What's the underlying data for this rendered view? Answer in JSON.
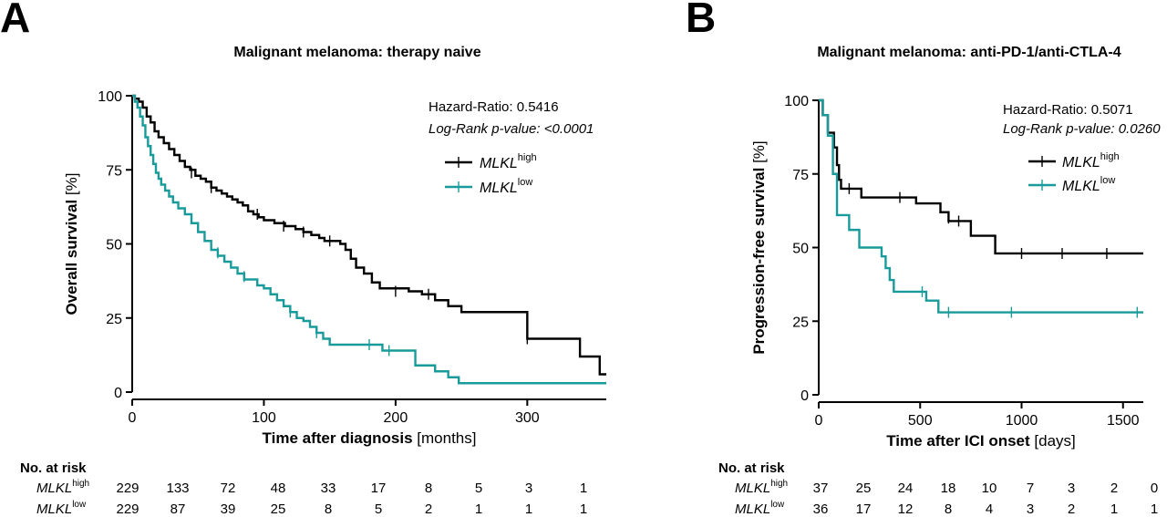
{
  "chart_data": [
    {
      "panel": "A",
      "type": "line",
      "title": "Malignant melanoma: therapy naive",
      "xlabel": "Time after diagnosis",
      "xunit": "[months]",
      "ylabel": "Overall survival",
      "yunit": "[%]",
      "xlim": [
        0,
        360
      ],
      "ylim": [
        0,
        100
      ],
      "xticks": [
        0,
        100,
        200,
        300
      ],
      "yticks": [
        0,
        25,
        50,
        75,
        100
      ],
      "grid": false,
      "stats": {
        "hazard_ratio": "Hazard-Ratio: 0.5416",
        "logrank": "Log-Rank p-value: <0.0001"
      },
      "legend_position": "top-right",
      "series": [
        {
          "name": "MLKL",
          "sup": "high",
          "color": "#000000",
          "steps": [
            [
              0,
              100
            ],
            [
              2,
              99
            ],
            [
              5,
              98
            ],
            [
              8,
              96
            ],
            [
              11,
              93
            ],
            [
              14,
              91
            ],
            [
              17,
              88
            ],
            [
              20,
              86
            ],
            [
              24,
              84
            ],
            [
              28,
              82
            ],
            [
              32,
              80
            ],
            [
              36,
              78
            ],
            [
              40,
              76
            ],
            [
              44,
              75
            ],
            [
              48,
              73
            ],
            [
              52,
              72
            ],
            [
              56,
              71
            ],
            [
              60,
              69
            ],
            [
              64,
              68
            ],
            [
              68,
              67
            ],
            [
              72,
              66
            ],
            [
              76,
              65
            ],
            [
              80,
              64
            ],
            [
              84,
              63
            ],
            [
              88,
              61
            ],
            [
              92,
              60
            ],
            [
              96,
              59
            ],
            [
              100,
              58
            ],
            [
              108,
              57
            ],
            [
              116,
              56
            ],
            [
              124,
              55
            ],
            [
              130,
              54
            ],
            [
              136,
              53
            ],
            [
              142,
              52
            ],
            [
              146,
              51
            ],
            [
              152,
              51
            ],
            [
              158,
              50
            ],
            [
              162,
              48
            ],
            [
              166,
              45
            ],
            [
              170,
              42
            ],
            [
              176,
              40
            ],
            [
              182,
              37
            ],
            [
              188,
              35
            ],
            [
              210,
              34
            ],
            [
              220,
              33
            ],
            [
              230,
              31
            ],
            [
              240,
              29
            ],
            [
              250,
              27
            ],
            [
              300,
              18
            ],
            [
              340,
              12
            ],
            [
              355,
              6
            ]
          ],
          "end": 360,
          "censors": [
            [
              45,
              74
            ],
            [
              60,
              69
            ],
            [
              95,
              60
            ],
            [
              115,
              56
            ],
            [
              130,
              54
            ],
            [
              150,
              51
            ],
            [
              200,
              34
            ],
            [
              225,
              33
            ],
            [
              300,
              18
            ]
          ]
        },
        {
          "name": "MLKL",
          "sup": "low",
          "color": "#1a9b9b",
          "steps": [
            [
              0,
              100
            ],
            [
              2,
              98
            ],
            [
              4,
              96
            ],
            [
              6,
              93
            ],
            [
              8,
              90
            ],
            [
              10,
              86
            ],
            [
              12,
              83
            ],
            [
              14,
              80
            ],
            [
              16,
              77
            ],
            [
              18,
              74
            ],
            [
              20,
              72
            ],
            [
              22,
              70
            ],
            [
              25,
              68
            ],
            [
              28,
              66
            ],
            [
              31,
              64
            ],
            [
              35,
              62
            ],
            [
              40,
              60
            ],
            [
              45,
              57
            ],
            [
              50,
              54
            ],
            [
              55,
              51
            ],
            [
              60,
              48
            ],
            [
              65,
              46
            ],
            [
              70,
              44
            ],
            [
              75,
              42
            ],
            [
              80,
              40
            ],
            [
              85,
              38
            ],
            [
              95,
              36
            ],
            [
              100,
              35
            ],
            [
              105,
              33
            ],
            [
              110,
              31
            ],
            [
              115,
              29
            ],
            [
              120,
              27
            ],
            [
              125,
              25
            ],
            [
              130,
              24
            ],
            [
              135,
              22
            ],
            [
              140,
              20
            ],
            [
              145,
              18
            ],
            [
              150,
              16
            ],
            [
              160,
              16
            ],
            [
              190,
              14
            ],
            [
              215,
              9
            ],
            [
              230,
              7
            ],
            [
              240,
              5
            ],
            [
              248,
              3
            ]
          ],
          "end": 360,
          "censors": [
            [
              65,
              47
            ],
            [
              85,
              39
            ],
            [
              120,
              27
            ],
            [
              140,
              20
            ],
            [
              180,
              16
            ],
            [
              195,
              14
            ]
          ]
        }
      ],
      "risk_table": {
        "header": "No. at risk",
        "rows": [
          {
            "label": "MLKL",
            "sup": "high",
            "values": [
              "229",
              "133",
              "72",
              "48",
              "33",
              "17",
              "8",
              "5",
              "3",
              "1"
            ]
          },
          {
            "label": "MLKL",
            "sup": "low",
            "values": [
              "229",
              "87",
              "39",
              "25",
              "8",
              "5",
              "2",
              "1",
              "1",
              "1"
            ]
          }
        ]
      }
    },
    {
      "panel": "B",
      "type": "line",
      "title": "Malignant melanoma: anti-PD-1/anti-CTLA-4",
      "xlabel": "Time after ICI onset",
      "xunit": "[days]",
      "ylabel": "Progression-free survival",
      "yunit": "[%]",
      "xlim": [
        0,
        1600
      ],
      "ylim": [
        0,
        100
      ],
      "xticks": [
        0,
        500,
        1000,
        1500
      ],
      "yticks": [
        0,
        25,
        50,
        75,
        100
      ],
      "grid": false,
      "stats": {
        "hazard_ratio": "Hazard-Ratio: 0.5071",
        "logrank": "Log-Rank p-value: 0.0260"
      },
      "legend_position": "top-right",
      "series": [
        {
          "name": "MLKL",
          "sup": "high",
          "color": "#000000",
          "steps": [
            [
              0,
              100
            ],
            [
              20,
              95
            ],
            [
              45,
              89
            ],
            [
              75,
              84
            ],
            [
              90,
              78
            ],
            [
              100,
              73
            ],
            [
              110,
              70
            ],
            [
              210,
              67
            ],
            [
              480,
              65
            ],
            [
              600,
              62
            ],
            [
              640,
              59
            ],
            [
              750,
              54
            ],
            [
              870,
              48
            ]
          ],
          "end": 1600,
          "censors": [
            [
              150,
              70
            ],
            [
              400,
              67
            ],
            [
              640,
              60
            ],
            [
              690,
              59
            ],
            [
              1000,
              48
            ],
            [
              1200,
              48
            ],
            [
              1420,
              48
            ]
          ]
        },
        {
          "name": "MLKL",
          "sup": "low",
          "color": "#1a9b9b",
          "steps": [
            [
              0,
              100
            ],
            [
              20,
              95
            ],
            [
              45,
              88
            ],
            [
              70,
              75
            ],
            [
              90,
              61
            ],
            [
              150,
              56
            ],
            [
              200,
              50
            ],
            [
              310,
              47
            ],
            [
              330,
              43
            ],
            [
              350,
              39
            ],
            [
              370,
              35
            ],
            [
              530,
              32
            ],
            [
              590,
              28
            ]
          ],
          "end": 1600,
          "censors": [
            [
              510,
              35
            ],
            [
              640,
              28
            ],
            [
              950,
              28
            ],
            [
              1570,
              28
            ]
          ]
        }
      ],
      "risk_table": {
        "header": "No. at risk",
        "rows": [
          {
            "label": "MLKL",
            "sup": "high",
            "values": [
              "37",
              "25",
              "24",
              "18",
              "10",
              "7",
              "3",
              "2",
              "0"
            ]
          },
          {
            "label": "MLKL",
            "sup": "low",
            "values": [
              "36",
              "17",
              "12",
              "8",
              "4",
              "3",
              "2",
              "1",
              "1"
            ]
          }
        ]
      }
    }
  ]
}
